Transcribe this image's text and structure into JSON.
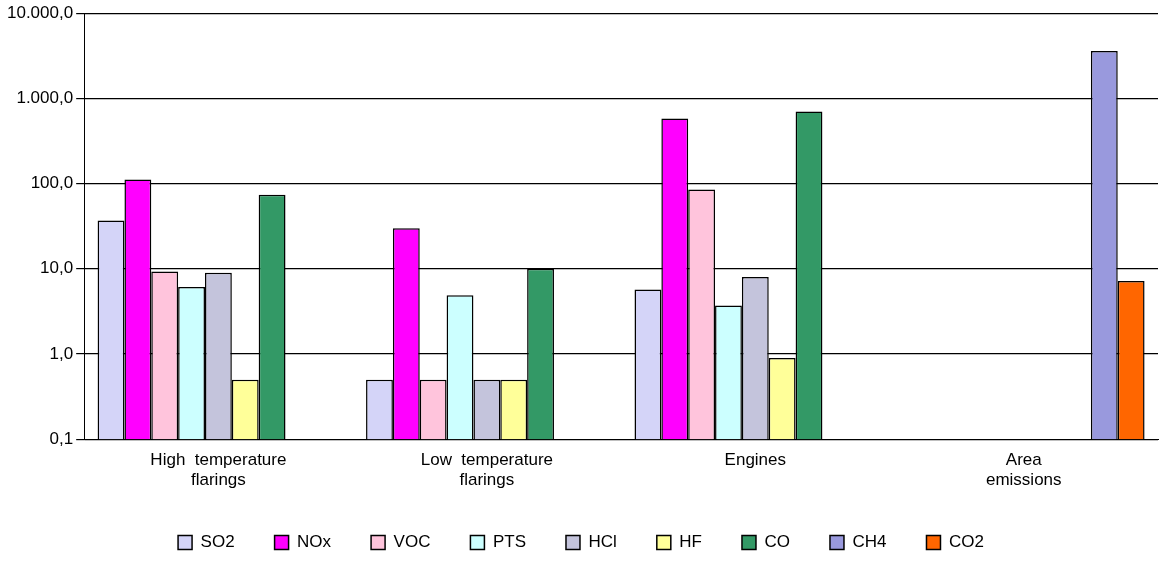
{
  "chart_data": {
    "type": "bar",
    "categories": [
      "High  temperature flarings",
      "Low  temperature flarings",
      "Engines",
      "Area emissions"
    ],
    "series": [
      {
        "name": "SO2",
        "color": "#d4d4f8",
        "values": [
          37,
          0.5,
          5.7,
          null
        ]
      },
      {
        "name": "NOx",
        "color": "#ff00ff",
        "values": [
          112,
          30,
          580,
          null
        ]
      },
      {
        "name": "VOC",
        "color": "#ffc4dc",
        "values": [
          9.3,
          0.5,
          85,
          null
        ]
      },
      {
        "name": "PTS",
        "color": "#ccffff",
        "values": [
          6.1,
          4.9,
          3.7,
          null
        ]
      },
      {
        "name": "HCl",
        "color": "#c4c4dc",
        "values": [
          9,
          0.5,
          8,
          null
        ]
      },
      {
        "name": "HF",
        "color": "#ffff99",
        "values": [
          0.5,
          0.5,
          0.9,
          null
        ]
      },
      {
        "name": "CO",
        "color": "#339966",
        "values": [
          74,
          10,
          700,
          null
        ]
      },
      {
        "name": "CH4",
        "color": "#9999dd",
        "values": [
          null,
          null,
          null,
          3600
        ]
      },
      {
        "name": "CO2",
        "color": "#ff6600",
        "values": [
          null,
          null,
          null,
          7.2
        ]
      }
    ],
    "log": true,
    "ylim": [
      0.1,
      10000
    ],
    "yticks": [
      {
        "value": 0.1,
        "label": "0,1"
      },
      {
        "value": 1,
        "label": "1,0"
      },
      {
        "value": 10,
        "label": "10,0"
      },
      {
        "value": 100,
        "label": "100,0"
      },
      {
        "value": 1000,
        "label": "1.000,0"
      },
      {
        "value": 10000,
        "label": "10.000,0"
      }
    ],
    "grid": "y",
    "legend": "bottom"
  }
}
